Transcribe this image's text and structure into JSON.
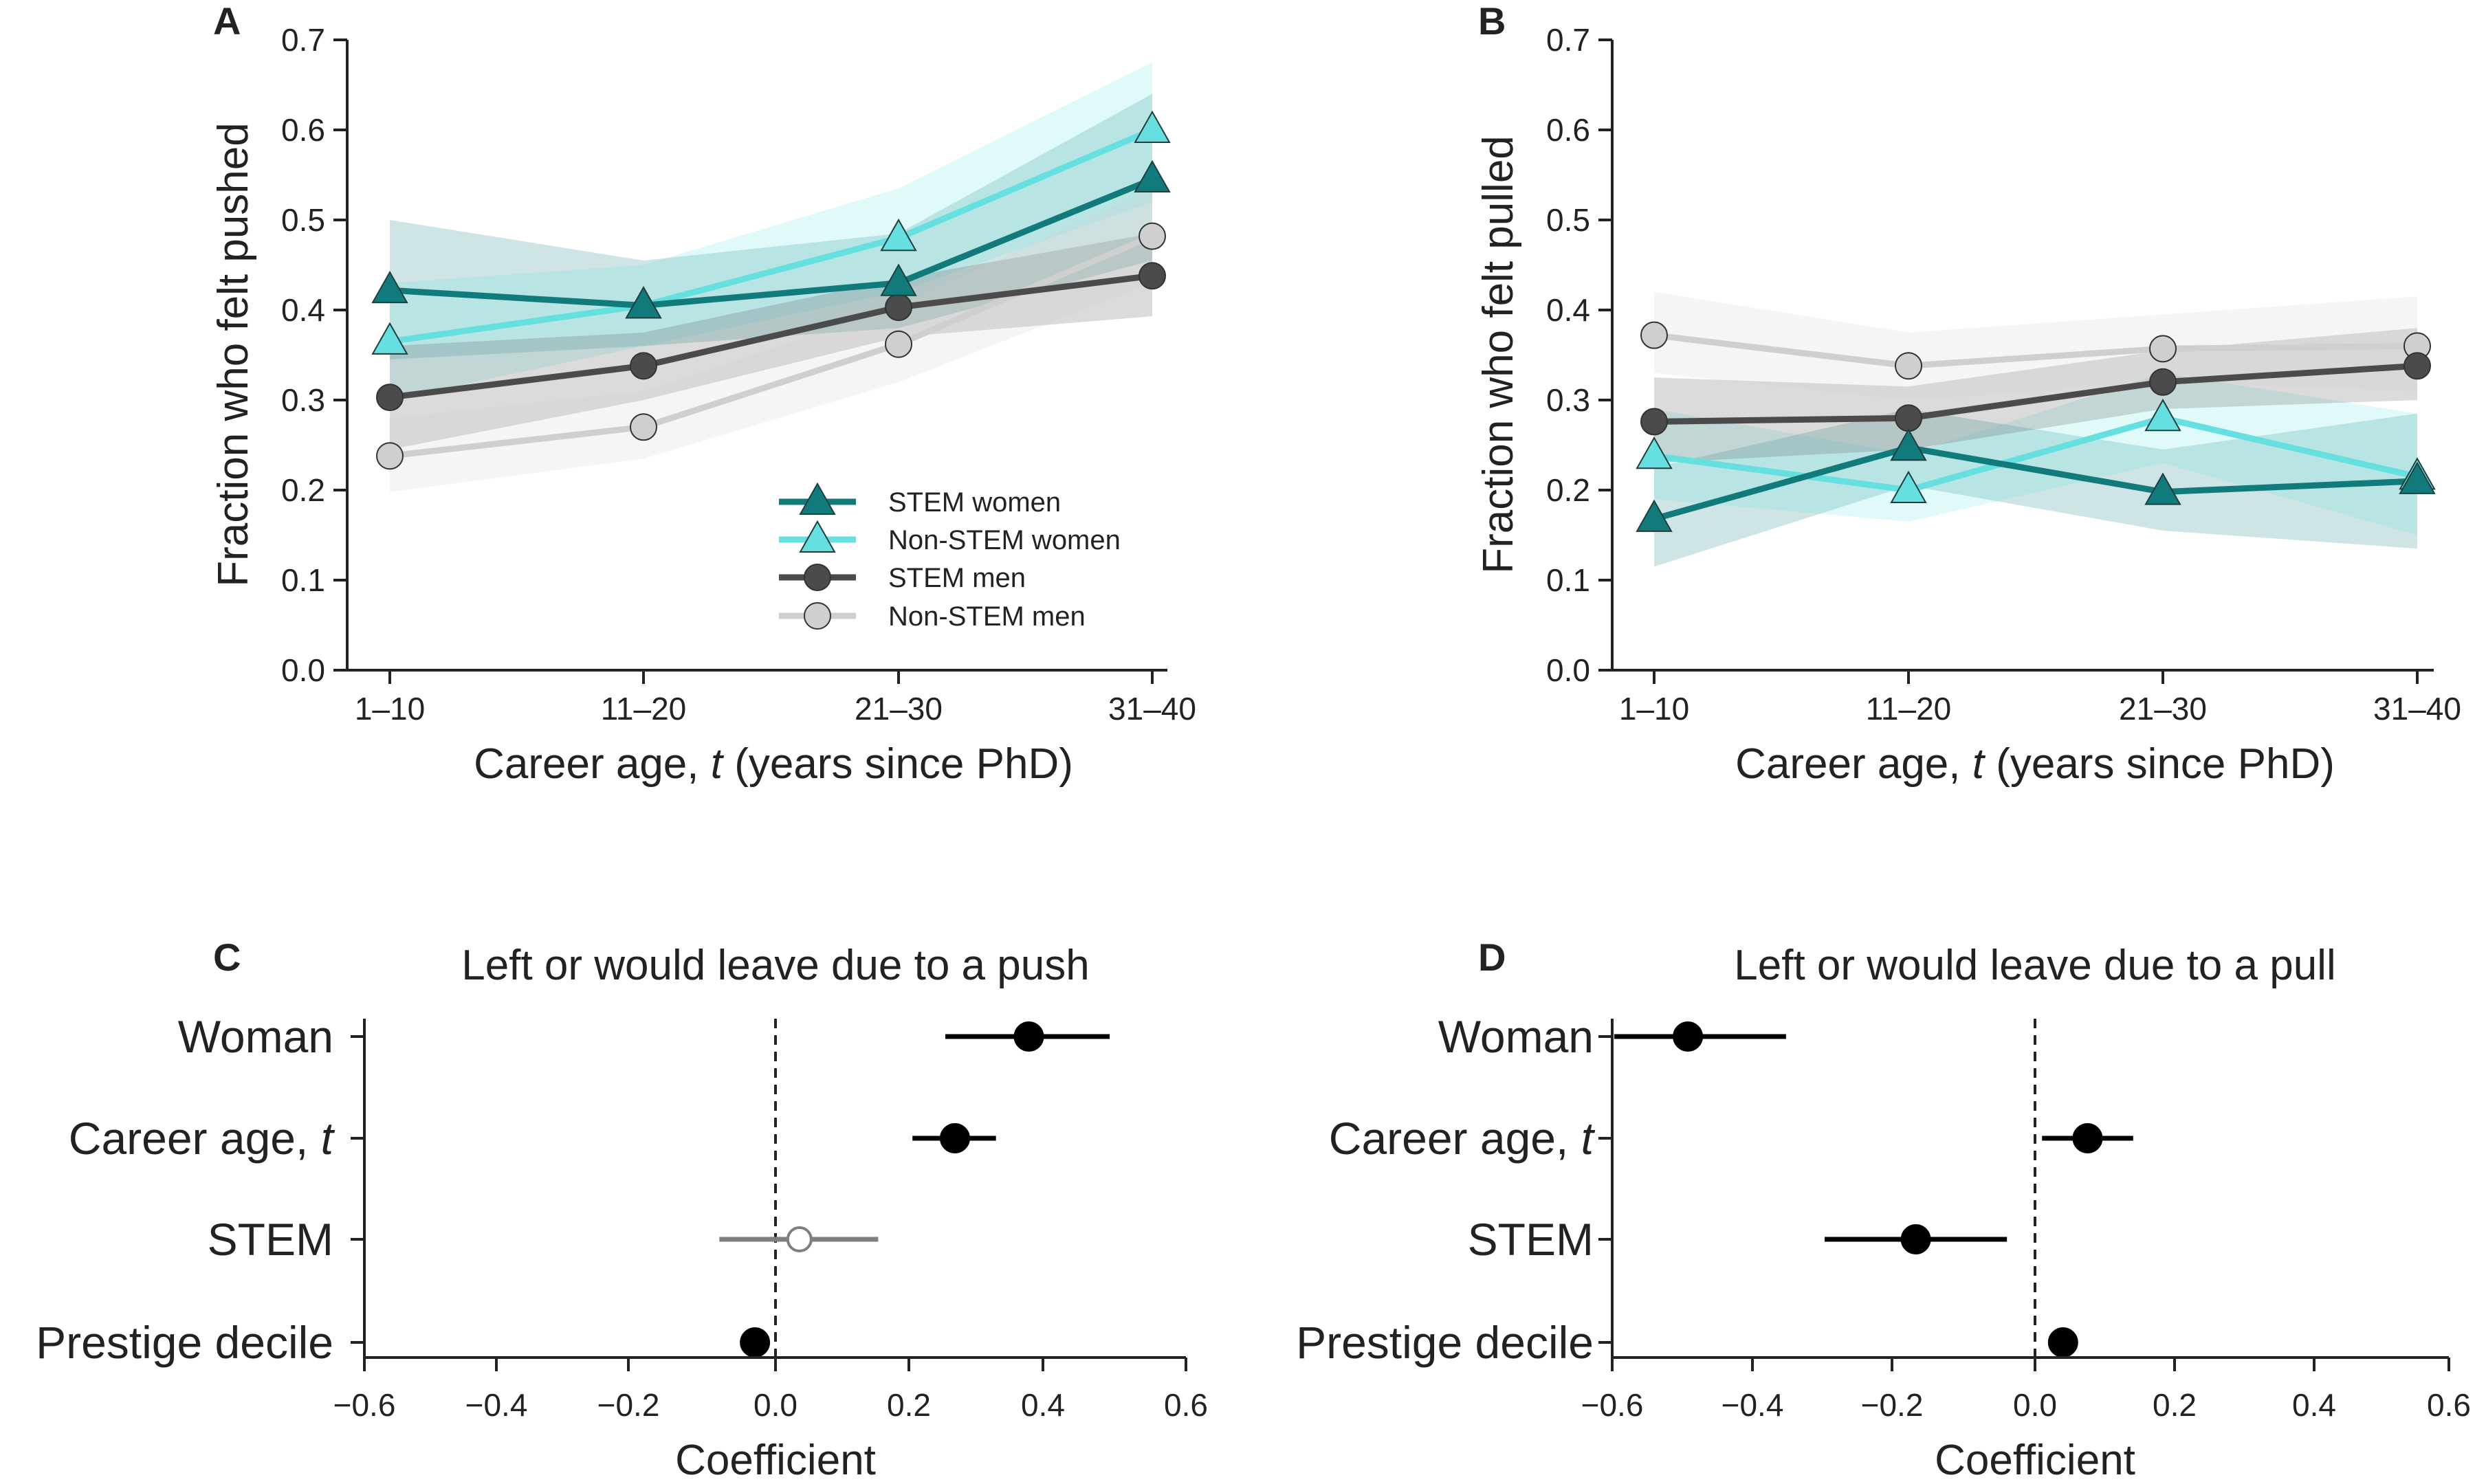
{
  "chart_data": [
    {
      "panel": "A",
      "type": "line",
      "xlabel": "Career age, t (years since PhD)",
      "ylabel": "Fraction who felt pushed",
      "categories": [
        "1–10",
        "11–20",
        "21–30",
        "31–40"
      ],
      "ylim": [
        0,
        0.7
      ],
      "yticks": [
        "0.0",
        "0.1",
        "0.2",
        "0.3",
        "0.4",
        "0.5",
        "0.6",
        "0.7"
      ],
      "legend_position": "lower-right",
      "series": [
        {
          "name": "STEM women",
          "color": "#117b7b",
          "marker": "triangle",
          "values": [
            0.422,
            0.405,
            0.43,
            0.545
          ],
          "band_lo": [
            0.345,
            0.36,
            0.38,
            0.455
          ],
          "band_hi": [
            0.5,
            0.455,
            0.485,
            0.64
          ]
        },
        {
          "name": "Non-STEM women",
          "color": "#66dfe0",
          "marker": "triangle",
          "values": [
            0.365,
            0.405,
            0.48,
            0.6
          ],
          "band_lo": [
            0.3,
            0.36,
            0.42,
            0.52
          ],
          "band_hi": [
            0.43,
            0.45,
            0.535,
            0.675
          ]
        },
        {
          "name": "STEM men",
          "color": "#4b4b4b",
          "marker": "circle",
          "values": [
            0.303,
            0.338,
            0.403,
            0.438
          ],
          "band_lo": [
            0.245,
            0.3,
            0.37,
            0.393
          ],
          "band_hi": [
            0.36,
            0.375,
            0.435,
            0.485
          ]
        },
        {
          "name": "Non-STEM men",
          "color": "#cfcfcf",
          "marker": "circle",
          "values": [
            0.238,
            0.27,
            0.362,
            0.482
          ],
          "band_lo": [
            0.198,
            0.235,
            0.32,
            0.43
          ],
          "band_hi": [
            0.28,
            0.31,
            0.405,
            0.535
          ]
        }
      ]
    },
    {
      "panel": "B",
      "type": "line",
      "xlabel": "Career age, t (years since PhD)",
      "ylabel": "Fraction who felt pulled",
      "categories": [
        "1–10",
        "11–20",
        "21–30",
        "31–40"
      ],
      "ylim": [
        0,
        0.7
      ],
      "yticks": [
        "0.0",
        "0.1",
        "0.2",
        "0.3",
        "0.4",
        "0.5",
        "0.6",
        "0.7"
      ],
      "series": [
        {
          "name": "STEM women",
          "color": "#117b7b",
          "marker": "triangle",
          "values": [
            0.168,
            0.247,
            0.198,
            0.21
          ],
          "band_lo": [
            0.115,
            0.205,
            0.155,
            0.135
          ],
          "band_hi": [
            0.225,
            0.29,
            0.245,
            0.285
          ]
        },
        {
          "name": "Non-STEM women",
          "color": "#66dfe0",
          "marker": "triangle",
          "values": [
            0.238,
            0.2,
            0.28,
            0.215
          ],
          "band_lo": [
            0.19,
            0.165,
            0.23,
            0.15
          ],
          "band_hi": [
            0.29,
            0.24,
            0.33,
            0.285
          ]
        },
        {
          "name": "STEM men",
          "color": "#4b4b4b",
          "marker": "circle",
          "values": [
            0.276,
            0.28,
            0.32,
            0.338
          ],
          "band_lo": [
            0.23,
            0.245,
            0.29,
            0.3
          ],
          "band_hi": [
            0.325,
            0.315,
            0.355,
            0.38
          ]
        },
        {
          "name": "Non-STEM men",
          "color": "#cfcfcf",
          "marker": "circle",
          "values": [
            0.372,
            0.338,
            0.357,
            0.36
          ],
          "band_lo": [
            0.33,
            0.3,
            0.32,
            0.31
          ],
          "band_hi": [
            0.42,
            0.375,
            0.395,
            0.415
          ]
        }
      ]
    },
    {
      "panel": "C",
      "type": "scatter",
      "title": "Left or would leave due to a push",
      "xlabel": "Coefficient",
      "xlim": [
        -0.6,
        0.6
      ],
      "xticks": [
        "−0.6",
        "−0.4",
        "−0.2",
        "0.0",
        "0.2",
        "0.4",
        "0.6"
      ],
      "reference_line": 0,
      "categories": [
        "Woman",
        "Career age, t",
        "STEM",
        "Prestige decile"
      ],
      "estimates": [
        0.37,
        0.262,
        0.035,
        -0.03
      ],
      "ci_lo": [
        0.248,
        0.2,
        -0.082,
        -0.048
      ],
      "ci_hi": [
        0.488,
        0.322,
        0.15,
        -0.012
      ],
      "significant": [
        true,
        true,
        false,
        true
      ]
    },
    {
      "panel": "D",
      "type": "scatter",
      "title": "Left or would leave due to a pull",
      "xlabel": "Coefficient",
      "xlim": [
        -0.6,
        0.6
      ],
      "xticks": [
        "−0.6",
        "−0.4",
        "−0.2",
        "0.0",
        "0.2",
        "0.4",
        "0.6"
      ],
      "reference_line": 0,
      "categories": [
        "Woman",
        "Career age, t",
        "STEM",
        "Prestige decile"
      ],
      "estimates": [
        -0.495,
        0.075,
        -0.17,
        0.04
      ],
      "ci_lo": [
        -0.6,
        0.01,
        -0.3,
        0.025
      ],
      "ci_hi": [
        -0.355,
        0.14,
        -0.04,
        0.058
      ],
      "significant": [
        true,
        true,
        true,
        true
      ]
    }
  ]
}
